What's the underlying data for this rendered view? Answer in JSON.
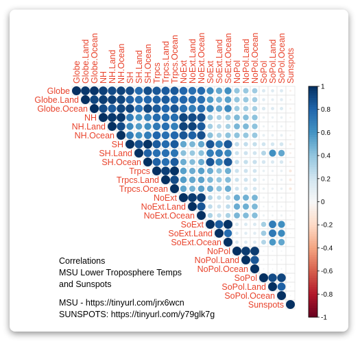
{
  "chart_data": {
    "type": "heatmap",
    "subtype": "correlation-matrix-upper",
    "variables": [
      "Globe",
      "Globe.Land",
      "Globe.Ocean",
      "NH",
      "NH.Land",
      "NH.Ocean",
      "SH",
      "SH.Land",
      "SH.Ocean",
      "Trpcs",
      "Trpcs.Land",
      "Trpcs.Ocean",
      "NoExt",
      "NoExt.Land",
      "NoExt.Ocean",
      "SoExt",
      "SoExt.Land",
      "SoExt.Ocean",
      "NoPol",
      "NoPol.Land",
      "NoPol.Ocean",
      "SoPol",
      "SoPol.Land",
      "SoPol.Ocean",
      "Sunspots"
    ],
    "matrix": [
      [
        1,
        0.97,
        0.98,
        0.94,
        0.9,
        0.93,
        0.9,
        0.78,
        0.89,
        0.86,
        0.84,
        0.85,
        0.8,
        0.76,
        0.78,
        0.64,
        0.52,
        0.62,
        0.4,
        0.38,
        0.36,
        0.15,
        0.13,
        0.14,
        -0.05
      ],
      [
        0.97,
        1,
        0.92,
        0.95,
        0.94,
        0.92,
        0.82,
        0.76,
        0.8,
        0.82,
        0.84,
        0.8,
        0.8,
        0.78,
        0.76,
        0.57,
        0.47,
        0.55,
        0.4,
        0.38,
        0.35,
        0.12,
        0.1,
        0.12,
        -0.04
      ],
      [
        0.98,
        0.92,
        1,
        0.9,
        0.84,
        0.92,
        0.92,
        0.75,
        0.92,
        0.85,
        0.8,
        0.86,
        0.76,
        0.7,
        0.76,
        0.66,
        0.52,
        0.65,
        0.37,
        0.35,
        0.34,
        0.16,
        0.14,
        0.15,
        -0.05
      ],
      [
        0.94,
        0.95,
        0.9,
        1,
        0.97,
        0.97,
        0.7,
        0.6,
        0.68,
        0.78,
        0.78,
        0.77,
        0.92,
        0.9,
        0.88,
        0.4,
        0.32,
        0.39,
        0.45,
        0.43,
        0.41,
        0.08,
        0.07,
        0.08,
        -0.04
      ],
      [
        0.9,
        0.94,
        0.84,
        0.97,
        1,
        0.9,
        0.64,
        0.56,
        0.62,
        0.72,
        0.76,
        0.69,
        0.93,
        0.93,
        0.84,
        0.35,
        0.28,
        0.34,
        0.46,
        0.45,
        0.41,
        0.06,
        0.05,
        0.06,
        -0.03
      ],
      [
        0.93,
        0.92,
        0.92,
        0.97,
        0.9,
        1,
        0.7,
        0.6,
        0.7,
        0.8,
        0.76,
        0.8,
        0.86,
        0.82,
        0.88,
        0.42,
        0.33,
        0.41,
        0.41,
        0.39,
        0.38,
        0.09,
        0.08,
        0.09,
        -0.04
      ],
      [
        0.9,
        0.82,
        0.92,
        0.7,
        0.64,
        0.7,
        1,
        0.88,
        0.99,
        0.84,
        0.78,
        0.84,
        0.52,
        0.46,
        0.52,
        0.86,
        0.68,
        0.85,
        0.26,
        0.25,
        0.24,
        0.2,
        0.18,
        0.19,
        -0.06
      ],
      [
        0.78,
        0.76,
        0.75,
        0.6,
        0.56,
        0.6,
        0.88,
        1,
        0.82,
        0.76,
        0.76,
        0.74,
        0.42,
        0.38,
        0.42,
        0.7,
        0.7,
        0.66,
        0.22,
        0.21,
        0.2,
        0.3,
        0.62,
        0.52,
        -0.05
      ],
      [
        0.89,
        0.8,
        0.92,
        0.68,
        0.62,
        0.7,
        0.99,
        0.82,
        1,
        0.82,
        0.76,
        0.84,
        0.5,
        0.44,
        0.5,
        0.86,
        0.66,
        0.86,
        0.25,
        0.24,
        0.23,
        0.18,
        0.15,
        0.17,
        -0.06
      ],
      [
        0.86,
        0.82,
        0.85,
        0.78,
        0.72,
        0.8,
        0.84,
        0.76,
        0.82,
        1,
        0.94,
        0.99,
        0.55,
        0.5,
        0.55,
        0.5,
        0.4,
        0.49,
        0.22,
        0.21,
        0.2,
        0.08,
        0.07,
        0.08,
        -0.1
      ],
      [
        0.84,
        0.84,
        0.8,
        0.78,
        0.76,
        0.76,
        0.78,
        0.76,
        0.76,
        0.94,
        1,
        0.9,
        0.56,
        0.52,
        0.54,
        0.45,
        0.38,
        0.44,
        0.22,
        0.21,
        0.2,
        0.07,
        0.06,
        0.07,
        -0.09
      ],
      [
        0.85,
        0.8,
        0.86,
        0.77,
        0.69,
        0.8,
        0.84,
        0.74,
        0.84,
        0.99,
        0.9,
        1,
        0.53,
        0.48,
        0.54,
        0.5,
        0.4,
        0.5,
        0.21,
        0.2,
        0.19,
        0.08,
        0.07,
        0.08,
        -0.1
      ],
      [
        0.8,
        0.8,
        0.76,
        0.92,
        0.93,
        0.86,
        0.52,
        0.42,
        0.5,
        0.55,
        0.56,
        0.53,
        1,
        0.96,
        0.94,
        0.3,
        0.24,
        0.3,
        0.5,
        0.48,
        0.46,
        0.05,
        0.04,
        0.05,
        -0.02
      ],
      [
        0.76,
        0.78,
        0.7,
        0.9,
        0.93,
        0.82,
        0.46,
        0.38,
        0.44,
        0.5,
        0.52,
        0.48,
        0.96,
        1,
        0.86,
        0.26,
        0.21,
        0.26,
        0.5,
        0.49,
        0.45,
        0.04,
        0.04,
        0.04,
        -0.02
      ],
      [
        0.78,
        0.76,
        0.76,
        0.88,
        0.84,
        0.88,
        0.52,
        0.42,
        0.5,
        0.55,
        0.54,
        0.54,
        0.94,
        0.86,
        1,
        0.32,
        0.25,
        0.32,
        0.46,
        0.44,
        0.43,
        0.06,
        0.05,
        0.06,
        -0.03
      ],
      [
        0.64,
        0.57,
        0.66,
        0.4,
        0.35,
        0.42,
        0.86,
        0.7,
        0.86,
        0.5,
        0.45,
        0.5,
        0.3,
        0.26,
        0.32,
        1,
        0.84,
        0.99,
        0.16,
        0.15,
        0.15,
        0.34,
        0.7,
        0.62,
        -0.02
      ],
      [
        0.52,
        0.47,
        0.52,
        0.32,
        0.28,
        0.33,
        0.68,
        0.7,
        0.66,
        0.4,
        0.38,
        0.4,
        0.24,
        0.21,
        0.25,
        0.84,
        1,
        0.78,
        0.13,
        0.12,
        0.12,
        0.36,
        0.72,
        0.64,
        -0.02
      ],
      [
        0.62,
        0.55,
        0.65,
        0.39,
        0.34,
        0.41,
        0.85,
        0.66,
        0.86,
        0.49,
        0.44,
        0.5,
        0.3,
        0.26,
        0.32,
        0.99,
        0.78,
        1,
        0.15,
        0.14,
        0.14,
        0.3,
        0.58,
        0.52,
        -0.02
      ],
      [
        0.4,
        0.4,
        0.37,
        0.45,
        0.46,
        0.41,
        0.26,
        0.22,
        0.25,
        0.22,
        0.22,
        0.21,
        0.5,
        0.5,
        0.46,
        0.16,
        0.13,
        0.15,
        1,
        0.96,
        0.96,
        0.03,
        0.03,
        0.03,
        0.01
      ],
      [
        0.38,
        0.38,
        0.35,
        0.43,
        0.45,
        0.39,
        0.25,
        0.21,
        0.24,
        0.21,
        0.21,
        0.2,
        0.48,
        0.49,
        0.44,
        0.15,
        0.12,
        0.14,
        0.96,
        1,
        0.86,
        0.03,
        0.03,
        0.03,
        0.01
      ],
      [
        0.36,
        0.35,
        0.34,
        0.41,
        0.41,
        0.38,
        0.24,
        0.2,
        0.23,
        0.2,
        0.2,
        0.19,
        0.46,
        0.45,
        0.43,
        0.15,
        0.12,
        0.14,
        0.96,
        0.86,
        1,
        0.03,
        0.02,
        0.03,
        0.01
      ],
      [
        0.15,
        0.12,
        0.16,
        0.08,
        0.06,
        0.09,
        0.2,
        0.3,
        0.18,
        0.08,
        0.07,
        0.08,
        0.05,
        0.04,
        0.06,
        0.34,
        0.36,
        0.3,
        0.03,
        0.03,
        0.03,
        1,
        0.9,
        0.92,
        0.02
      ],
      [
        0.13,
        0.1,
        0.14,
        0.07,
        0.05,
        0.08,
        0.18,
        0.62,
        0.15,
        0.07,
        0.06,
        0.07,
        0.04,
        0.04,
        0.05,
        0.7,
        0.72,
        0.58,
        0.03,
        0.03,
        0.02,
        0.9,
        1,
        0.82,
        0.02
      ],
      [
        0.14,
        0.12,
        0.15,
        0.08,
        0.06,
        0.09,
        0.19,
        0.52,
        0.17,
        0.08,
        0.07,
        0.08,
        0.05,
        0.04,
        0.06,
        0.62,
        0.64,
        0.52,
        0.03,
        0.03,
        0.03,
        0.92,
        0.82,
        1,
        0.02
      ],
      [
        -0.05,
        -0.04,
        -0.05,
        -0.04,
        -0.03,
        -0.04,
        -0.06,
        -0.05,
        -0.06,
        -0.1,
        -0.09,
        -0.1,
        -0.02,
        -0.02,
        -0.03,
        -0.02,
        -0.02,
        -0.02,
        0.01,
        0.01,
        0.01,
        0.02,
        0.02,
        0.02,
        1
      ]
    ],
    "colorbar": {
      "range": [
        -1,
        1
      ],
      "ticks": [
        "1",
        "0.8",
        "0.6",
        "0.4",
        "0.2",
        "0",
        "-0.2",
        "-0.4",
        "-0.6",
        "-0.8",
        "-1"
      ]
    },
    "colors": {
      "positive": "#053061",
      "neutral": "#f7f7f7",
      "negative": "#67001f",
      "label": "#e8432c"
    }
  },
  "caption": {
    "line1": "Correlations",
    "line2": "MSU Lower Troposphere Temps",
    "line3": "and Sunspots",
    "line4": "MSU - https://tinyurl.com/jrx6wcn",
    "line5": "SUNSPOTS: https://tinyurl.com/y79glk7g"
  }
}
